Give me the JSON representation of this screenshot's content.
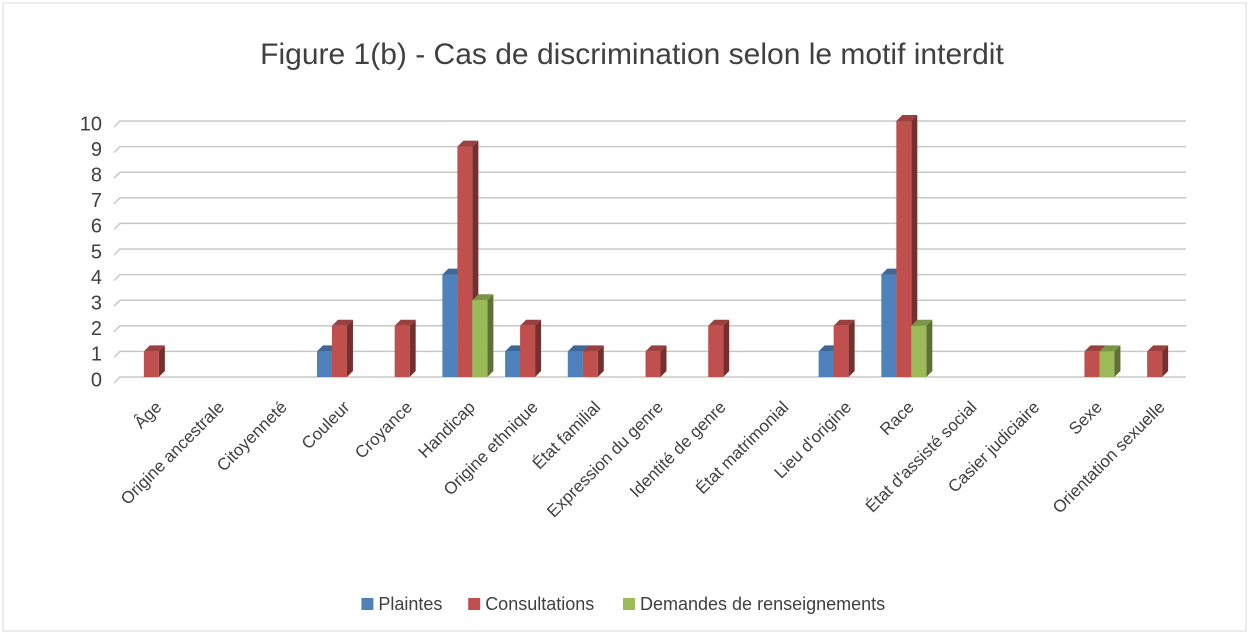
{
  "chart_data": {
    "type": "bar3d",
    "title": "Figure 1(b) - Cas de discrimination selon le motif interdit",
    "categories": [
      "Âge",
      "Origine ancestrale",
      "Citoyenneté",
      "Couleur",
      "Croyance",
      "Handicap",
      "Origine ethnique",
      "État familial",
      "Expression du genre",
      "Identité de genre",
      "État matrimonial",
      "Lieu d'origine",
      "Race",
      "État d'assisté social",
      "Casier judiciaire",
      "Sexe",
      "Orientation sexuelle"
    ],
    "series": [
      {
        "name": "Plaintes",
        "color": "#4f81bd",
        "values": [
          0,
          0,
          0,
          1,
          0,
          4,
          1,
          1,
          0,
          0,
          0,
          1,
          4,
          0,
          0,
          0,
          0
        ]
      },
      {
        "name": "Consultations",
        "color": "#c0504d",
        "values": [
          1,
          0,
          0,
          2,
          2,
          9,
          2,
          1,
          1,
          2,
          0,
          2,
          10,
          0,
          0,
          1,
          1
        ]
      },
      {
        "name": "Demandes de renseignements",
        "color": "#9bbb59",
        "values": [
          0,
          0,
          0,
          0,
          0,
          3,
          0,
          0,
          0,
          0,
          0,
          0,
          2,
          0,
          0,
          1,
          0
        ]
      }
    ],
    "ylim": [
      0,
      10
    ],
    "yticks": [
      0,
      1,
      2,
      3,
      4,
      5,
      6,
      7,
      8,
      9,
      10
    ],
    "grid": true,
    "legend": "bottom"
  }
}
